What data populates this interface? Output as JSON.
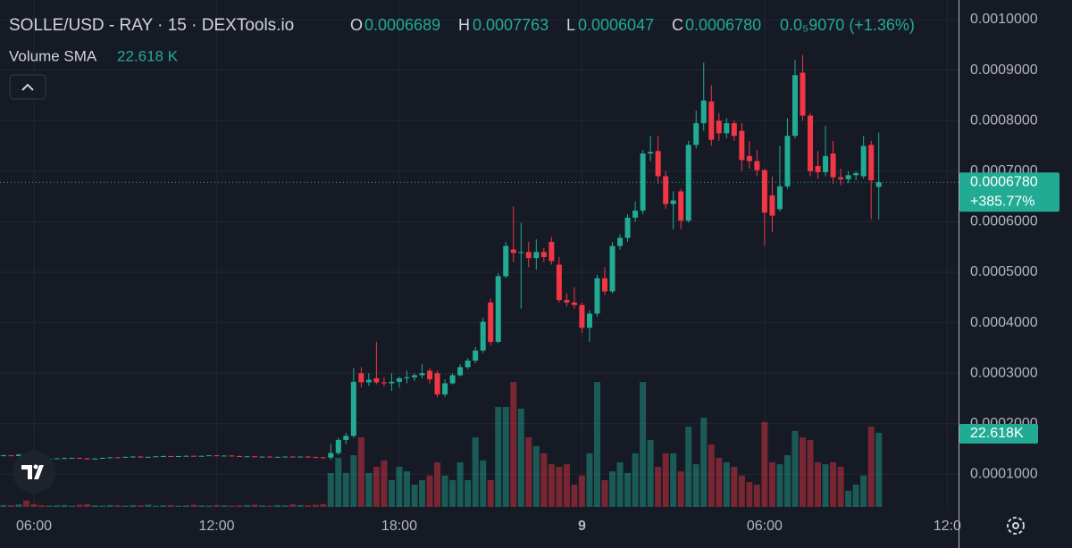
{
  "chart_data": {
    "type": "candlestick",
    "title": "SOLLE/USD - RAY · 15 · DEXTools.io",
    "ohlc_legend": {
      "o_label": "O",
      "o": "0.0006689",
      "h_label": "H",
      "h": "0.0007763",
      "l_label": "L",
      "l": "0.0006047",
      "c_label": "C",
      "c": "0.0006780",
      "change": "0.0₅9070 (+1.36%)"
    },
    "volume_legend": {
      "label": "Volume SMA",
      "value": "22.618 K"
    },
    "x": [
      5,
      5.25,
      5.5,
      5.75,
      6,
      6.25,
      6.5,
      6.75,
      7,
      7.25,
      7.5,
      7.75,
      8,
      8.25,
      8.5,
      8.75,
      9,
      9.25,
      9.5,
      9.75,
      10,
      10.25,
      10.5,
      10.75,
      11,
      11.25,
      11.5,
      11.75,
      12,
      12.25,
      12.5,
      12.75,
      13,
      13.25,
      13.5,
      13.75,
      14,
      14.25,
      14.5,
      14.75,
      15,
      15.25,
      15.5,
      15.75,
      16,
      16.25,
      16.5,
      16.75,
      17,
      17.25,
      17.5,
      17.75,
      18,
      18.25,
      18.5,
      18.75,
      19,
      19.25,
      19.5,
      19.75,
      20,
      20.25,
      20.5,
      20.75,
      21,
      21.25,
      21.5,
      21.75,
      22,
      22.25,
      22.5,
      22.75,
      23,
      23.25,
      23.5,
      23.75,
      24,
      24.25,
      24.5,
      24.75,
      25,
      25.25,
      25.5,
      25.75,
      26,
      26.25,
      26.5,
      26.75,
      27,
      27.25,
      27.5,
      27.75,
      28,
      28.25,
      28.5,
      28.75,
      29,
      29.25,
      29.5,
      29.75,
      30,
      30.25,
      30.5,
      30.75,
      31,
      31.25,
      31.5,
      31.75,
      32,
      32.25,
      32.5,
      32.75,
      33,
      33.25,
      33.5,
      33.75
    ],
    "open": [
      0.000137,
      0.0001375,
      0.000136,
      0.000139,
      0.000134,
      0.000131,
      0.00013,
      0.000131,
      0.0001315,
      0.000132,
      0.0001325,
      0.0001315,
      0.0001295,
      0.000131,
      0.0001325,
      0.0001335,
      0.000133,
      0.0001345,
      0.000135,
      0.0001335,
      0.0001345,
      0.0001355,
      0.000136,
      0.000135,
      0.000136,
      0.0001365,
      0.0001355,
      0.0001365,
      0.0001375,
      0.0001365,
      0.000137,
      0.000136,
      0.000135,
      0.0001355,
      0.0001345,
      0.000135,
      0.000134,
      0.0001345,
      0.000135,
      0.0001345,
      0.000135,
      0.000134,
      0.0001335,
      0.000133,
      0.000142,
      0.000168,
      0.000176,
      0.0003,
      0.000282,
      0.00029,
      0.000282,
      0.00028,
      0.000283,
      0.00029,
      0.000292,
      0.000296,
      0.000305,
      0.0003,
      0.000258,
      0.00028,
      0.000296,
      0.000312,
      0.000325,
      0.000345,
      0.00044,
      0.000362,
      0.000492,
      0.000545,
      0.000538,
      0.00054,
      0.000528,
      0.00054,
      0.00056,
      0.000515,
      0.000445,
      0.00044,
      0.000435,
      0.00039,
      0.000418,
      0.000488,
      0.000462,
      0.000552,
      0.000568,
      0.000608,
      0.000622,
      0.000735,
      0.00074,
      0.00069,
      0.000635,
      0.00066,
      0.000602,
      0.000752,
      0.000795,
      0.000838,
      0.0008,
      0.000775,
      0.000795,
      0.00078,
      0.00073,
      0.00072,
      0.000702,
      0.000652,
      0.000625,
      0.00067,
      0.00077,
      0.000895,
      0.00081,
      0.00071,
      0.000698,
      0.000735,
      0.000688,
      0.000684,
      0.000692,
      0.00069,
      0.000752,
      0.0006689
    ],
    "high": [
      0.000139,
      0.0001385,
      0.00014,
      0.000142,
      0.000135,
      0.000132,
      0.0001315,
      0.000132,
      0.000133,
      0.000133,
      0.000133,
      0.000132,
      0.000132,
      0.000133,
      0.000134,
      0.0001345,
      0.000135,
      0.000136,
      0.000136,
      0.000135,
      0.000136,
      0.000137,
      0.000137,
      0.0001365,
      0.0001375,
      0.000137,
      0.000137,
      0.000138,
      0.000138,
      0.0001375,
      0.000138,
      0.000137,
      0.000136,
      0.0001365,
      0.0001355,
      0.000136,
      0.000135,
      0.0001355,
      0.000136,
      0.0001355,
      0.000136,
      0.000135,
      0.0001345,
      0.00016,
      0.000172,
      0.000182,
      0.00031,
      0.000312,
      0.0003,
      0.000362,
      0.000292,
      0.0003,
      0.000293,
      0.000305,
      0.0003,
      0.000318,
      0.00031,
      0.000305,
      0.000288,
      0.0003,
      0.000318,
      0.00033,
      0.000352,
      0.00041,
      0.000448,
      0.000498,
      0.00056,
      0.00063,
      0.000598,
      0.00056,
      0.000565,
      0.000548,
      0.00057,
      0.00053,
      0.000458,
      0.00047,
      0.00044,
      0.000425,
      0.000495,
      0.00051,
      0.00056,
      0.000575,
      0.000615,
      0.00064,
      0.000742,
      0.00077,
      0.00077,
      0.0007,
      0.00066,
      0.000665,
      0.00076,
      0.00082,
      0.000915,
      0.00087,
      0.000815,
      0.000805,
      0.0008,
      0.000795,
      0.00076,
      0.000742,
      0.000705,
      0.00069,
      0.00075,
      0.000805,
      0.00092,
      0.00093,
      0.000815,
      0.00074,
      0.00079,
      0.00076,
      0.000705,
      0.0007,
      0.0007,
      0.00077,
      0.00076,
      0.0007763
    ],
    "low": [
      0.000136,
      0.000136,
      0.0001355,
      0.000134,
      0.00013,
      0.0001295,
      0.0001295,
      0.00013,
      0.0001305,
      0.000131,
      0.000131,
      0.000129,
      0.000129,
      0.0001305,
      0.000132,
      0.0001325,
      0.0001325,
      0.0001335,
      0.000133,
      0.000133,
      0.000134,
      0.000135,
      0.0001345,
      0.0001345,
      0.0001355,
      0.000135,
      0.000135,
      0.000136,
      0.000136,
      0.0001355,
      0.000136,
      0.0001345,
      0.000134,
      0.0001345,
      0.0001335,
      0.000134,
      0.000133,
      0.000134,
      0.000134,
      0.0001335,
      0.000134,
      0.0001325,
      0.000132,
      0.000128,
      0.000138,
      0.00016,
      0.000172,
      0.000272,
      0.000275,
      0.000278,
      0.000274,
      0.000265,
      0.000272,
      0.00028,
      0.000285,
      0.00029,
      0.00028,
      0.000252,
      0.000253,
      0.000278,
      0.000294,
      0.000308,
      0.00032,
      0.00034,
      0.000355,
      0.00036,
      0.000488,
      0.00052,
      0.000428,
      0.00051,
      0.000505,
      0.00052,
      0.000515,
      0.00044,
      0.000432,
      0.000428,
      0.00038,
      0.000362,
      0.000412,
      0.000455,
      0.000458,
      0.000545,
      0.00056,
      0.0006,
      0.000615,
      0.00072,
      0.000675,
      0.000625,
      0.000585,
      0.000585,
      0.000598,
      0.000745,
      0.00078,
      0.00075,
      0.00076,
      0.000765,
      0.00076,
      0.0007,
      0.000705,
      0.00069,
      0.000552,
      0.00058,
      0.00062,
      0.000665,
      0.000765,
      0.0008,
      0.00069,
      0.000685,
      0.00069,
      0.000675,
      0.000672,
      0.000676,
      0.000682,
      0.000685,
      0.000605,
      0.0006047
    ],
    "close": [
      0.0001375,
      0.000136,
      0.000139,
      0.000134,
      0.000131,
      0.00013,
      0.000131,
      0.0001315,
      0.000132,
      0.0001325,
      0.0001315,
      0.0001295,
      0.000131,
      0.0001325,
      0.0001335,
      0.000133,
      0.0001345,
      0.000135,
      0.0001335,
      0.0001345,
      0.0001355,
      0.000136,
      0.000135,
      0.000136,
      0.0001365,
      0.0001355,
      0.0001365,
      0.0001375,
      0.0001365,
      0.000137,
      0.000136,
      0.000135,
      0.0001355,
      0.0001345,
      0.000135,
      0.000134,
      0.0001345,
      0.000135,
      0.0001345,
      0.000135,
      0.000134,
      0.0001335,
      0.000133,
      0.000142,
      0.000168,
      0.000176,
      0.000283,
      0.000282,
      0.000287,
      0.000282,
      0.00028,
      0.000283,
      0.00029,
      0.000292,
      0.000296,
      0.0003,
      0.000288,
      0.000258,
      0.00028,
      0.000296,
      0.000312,
      0.000325,
      0.000345,
      0.000402,
      0.000362,
      0.000492,
      0.000552,
      0.000538,
      0.00054,
      0.000528,
      0.00054,
      0.00053,
      0.000522,
      0.000445,
      0.00044,
      0.000435,
      0.00039,
      0.000418,
      0.000488,
      0.000462,
      0.000552,
      0.000568,
      0.000608,
      0.000622,
      0.000735,
      0.000738,
      0.00069,
      0.000635,
      0.000642,
      0.000602,
      0.000752,
      0.000795,
      0.00084,
      0.000762,
      0.000775,
      0.000795,
      0.00077,
      0.000722,
      0.00072,
      0.000702,
      0.000618,
      0.000612,
      0.00067,
      0.00077,
      0.00089,
      0.00081,
      0.0007,
      0.000698,
      0.00073,
      0.000688,
      0.000684,
      0.000692,
      0.000696,
      0.00075,
      0.000682,
      0.000678
    ],
    "volume": [
      600,
      500,
      800,
      2000,
      900,
      500,
      400,
      500,
      600,
      400,
      700,
      900,
      500,
      400,
      600,
      500,
      400,
      600,
      500,
      700,
      400,
      500,
      600,
      400,
      500,
      700,
      500,
      400,
      600,
      500,
      400,
      500,
      600,
      700,
      500,
      400,
      600,
      500,
      800,
      600,
      500,
      700,
      900,
      10500,
      15200,
      10500,
      16000,
      21500,
      10500,
      12400,
      14400,
      8300,
      12400,
      11000,
      6900,
      8300,
      9700,
      13800,
      9700,
      8300,
      13800,
      8300,
      21500,
      14400,
      8300,
      30900,
      30900,
      38600,
      30400,
      21500,
      18800,
      16600,
      13200,
      12400,
      13200,
      6900,
      9700,
      16600,
      38600,
      8300,
      11000,
      13800,
      10500,
      16600,
      38600,
      20700,
      12400,
      16600,
      16600,
      11000,
      24800,
      13200,
      27600,
      19300,
      15200,
      13800,
      12400,
      9700,
      7700,
      6900,
      26200,
      13800,
      13200,
      16000,
      23500,
      21500,
      20700,
      13800,
      13200,
      13800,
      12400,
      5000,
      6900,
      9700,
      24800,
      22900
    ],
    "up_color": "#22ab94",
    "down_color": "#f23645",
    "xlim": [
      4.885,
      36.37
    ],
    "xticks": [
      {
        "value": 6,
        "label": "06:00"
      },
      {
        "value": 12,
        "label": "12:00"
      },
      {
        "value": 18,
        "label": "18:00"
      },
      {
        "value": 24,
        "label": "9"
      },
      {
        "value": 30,
        "label": "06:00"
      },
      {
        "value": 36,
        "label": "12:0"
      }
    ],
    "ylim": [
      3.53e-05,
      0.0010389
    ],
    "yticks": [
      {
        "value": 0.001,
        "label": "0.0010000"
      },
      {
        "value": 0.0009,
        "label": "0.0009000"
      },
      {
        "value": 0.0008,
        "label": "0.0008000"
      },
      {
        "value": 0.0007,
        "label": "0.0007000"
      },
      {
        "value": 0.0006,
        "label": "0.0006000"
      },
      {
        "value": 0.0005,
        "label": "0.0005000"
      },
      {
        "value": 0.0004,
        "label": "0.0004000"
      },
      {
        "value": 0.0003,
        "label": "0.0003000"
      },
      {
        "value": 0.0002,
        "label": "0.0002000"
      },
      {
        "value": 0.0001,
        "label": "0.0001000"
      }
    ],
    "vlim": [
      0,
      156700
    ],
    "grid": true,
    "last_price": {
      "value": 0.000678,
      "label": "0.0006780",
      "change": "+385.77%"
    },
    "volume_sma": {
      "value": 22618,
      "label": "22.618K"
    }
  }
}
